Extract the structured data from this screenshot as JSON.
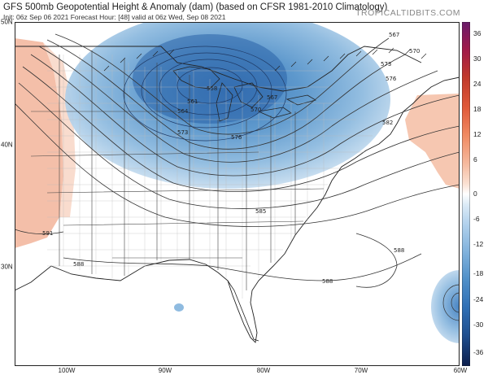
{
  "header": {
    "title": "GFS 500mb Geopotential Height & Anomaly (dam) (based on CFSR 1981-2010 Climatology)",
    "subtitle": "Init: 06z Sep 06 2021   Forecast Hour: [48]   valid at 06z Wed, Sep 08 2021",
    "brand": "TROPICALTIDBITS.COM"
  },
  "axes": {
    "lat_labels": [
      "50N",
      "40N",
      "30N"
    ],
    "lon_labels": [
      "100W",
      "90W",
      "80W",
      "70W",
      "60W"
    ]
  },
  "colorbar": {
    "ticks": [
      "36",
      "30",
      "24",
      "18",
      "12",
      "6",
      "0",
      "-6",
      "-12",
      "-18",
      "-24",
      "-30",
      "-36"
    ],
    "top_color": "#6a1b6a",
    "bottom_color": "#0d1f4d"
  },
  "contours": {
    "labels": [
      "567",
      "570",
      "573",
      "576",
      "582",
      "585",
      "588",
      "588",
      "588",
      "558",
      "561",
      "564",
      "567",
      "570",
      "573",
      "576",
      "591"
    ]
  }
}
